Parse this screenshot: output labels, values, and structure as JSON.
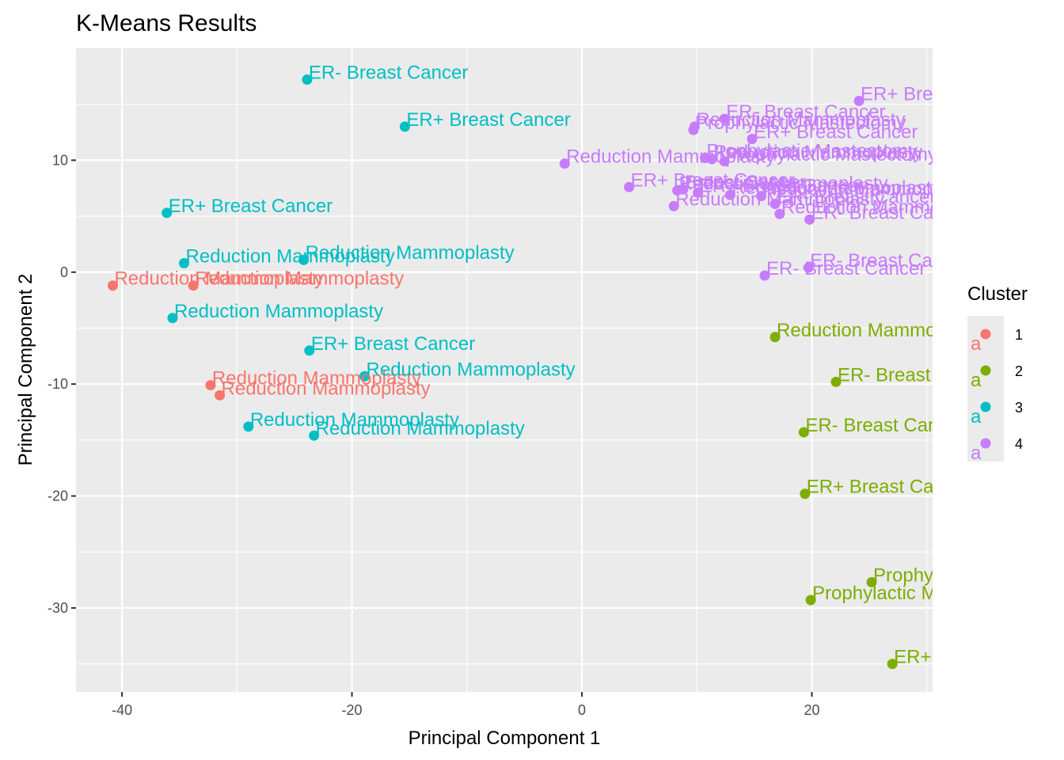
{
  "chart_data": {
    "type": "scatter",
    "title": "K-Means Results",
    "xlabel": "Principal Component 1",
    "ylabel": "Principal Component 2",
    "xlim": [
      -44,
      30.5
    ],
    "ylim": [
      -37.5,
      20
    ],
    "x_ticks": [
      -40,
      -20,
      0,
      20
    ],
    "y_ticks": [
      -30,
      -20,
      -10,
      0,
      10
    ],
    "x_tick_labels": [
      "-40",
      "-20",
      "0",
      "20"
    ],
    "y_tick_labels": [
      "-30",
      "-20",
      "-10",
      "0",
      "10"
    ],
    "grid": true,
    "background": "#ebebeb",
    "legend": {
      "title": "Cluster",
      "position": "right",
      "key_glyph_text": "a",
      "entries": [
        {
          "label": "1",
          "color": "#F8766D"
        },
        {
          "label": "2",
          "color": "#7CAE00"
        },
        {
          "label": "3",
          "color": "#00BFC4"
        },
        {
          "label": "4",
          "color": "#C77CFF"
        }
      ]
    },
    "series": [
      {
        "name": "1",
        "color": "#F8766D",
        "points": [
          {
            "x": -40.8,
            "y": -1.2,
            "label": "Reduction Mammoplasty"
          },
          {
            "x": -33.8,
            "y": -1.2,
            "label": "Reduction Mammoplasty"
          },
          {
            "x": -32.3,
            "y": -10.1,
            "label": "Reduction Mammoplasty"
          },
          {
            "x": -31.5,
            "y": -11.0,
            "label": "Reduction Mammoplasty"
          }
        ]
      },
      {
        "name": "2",
        "color": "#7CAE00",
        "points": [
          {
            "x": 16.8,
            "y": -5.8,
            "label": "Reduction Mammoplasty"
          },
          {
            "x": 22.1,
            "y": -9.8,
            "label": "ER- Breast Cancer"
          },
          {
            "x": 19.3,
            "y": -14.3,
            "label": "ER- Breast Cancer"
          },
          {
            "x": 19.4,
            "y": -19.8,
            "label": "ER+ Breast Cancer"
          },
          {
            "x": 25.2,
            "y": -27.7,
            "label": "Prophylactic Mastectomy"
          },
          {
            "x": 19.9,
            "y": -29.3,
            "label": "Prophylactic Mastectomy"
          },
          {
            "x": 27.0,
            "y": -35.0,
            "label": "ER+ Breast Cancer"
          }
        ]
      },
      {
        "name": "3",
        "color": "#00BFC4",
        "points": [
          {
            "x": -23.9,
            "y": 17.2,
            "label": "ER- Breast Cancer"
          },
          {
            "x": -15.4,
            "y": 13.0,
            "label": "ER+ Breast Cancer"
          },
          {
            "x": -36.1,
            "y": 5.3,
            "label": "ER+ Breast Cancer"
          },
          {
            "x": -34.6,
            "y": 0.8,
            "label": "Reduction Mammoplasty"
          },
          {
            "x": -24.2,
            "y": 1.1,
            "label": "Reduction Mammoplasty"
          },
          {
            "x": -35.6,
            "y": -4.1,
            "label": "Reduction Mammoplasty"
          },
          {
            "x": -23.7,
            "y": -7.0,
            "label": "ER+ Breast Cancer"
          },
          {
            "x": -18.9,
            "y": -9.3,
            "label": "Reduction Mammoplasty"
          },
          {
            "x": -29.0,
            "y": -13.8,
            "label": "Reduction Mammoplasty"
          },
          {
            "x": -23.3,
            "y": -14.6,
            "label": "Reduction Mammoplasty"
          }
        ]
      },
      {
        "name": "4",
        "color": "#C77CFF",
        "points": [
          {
            "x": 24.1,
            "y": 15.3,
            "label": "ER+ Breast Cancer"
          },
          {
            "x": 12.4,
            "y": 13.7,
            "label": "ER- Breast Cancer"
          },
          {
            "x": 9.8,
            "y": 13.0,
            "label": "Reduction Mammoplasty"
          },
          {
            "x": 9.7,
            "y": 12.7,
            "label": "Prophylactic Mastectomy"
          },
          {
            "x": 14.8,
            "y": 11.9,
            "label": "ER+ Breast Cancer"
          },
          {
            "x": -1.5,
            "y": 9.7,
            "label": "Reduction Mammoplasty"
          },
          {
            "x": 10.7,
            "y": 10.2,
            "label": "Prophylactic Mastectomy"
          },
          {
            "x": 11.3,
            "y": 10.1,
            "label": "Reduction Mammoplasty"
          },
          {
            "x": 12.4,
            "y": 9.9,
            "label": "Prophylactic Mastectomy"
          },
          {
            "x": 4.1,
            "y": 7.6,
            "label": "ER+ Breast Cancer"
          },
          {
            "x": 8.3,
            "y": 7.3,
            "label": "Reduction Mammoplasty"
          },
          {
            "x": 8.8,
            "y": 7.4,
            "label": "Breast Cancer"
          },
          {
            "x": 10.1,
            "y": 7.1,
            "label": "ER+ Breast Cancer"
          },
          {
            "x": 12.9,
            "y": 6.9,
            "label": "Reduction Mammoplasty"
          },
          {
            "x": 15.6,
            "y": 6.8,
            "label": "Reduction Mammoplasty"
          },
          {
            "x": 8.0,
            "y": 5.9,
            "label": "Reduction Mammoplasty"
          },
          {
            "x": 16.8,
            "y": 6.1,
            "label": "ER- Breast Cancer"
          },
          {
            "x": 17.2,
            "y": 5.2,
            "label": "Reduction Mammoplasty"
          },
          {
            "x": 19.8,
            "y": 4.7,
            "label": "ER- Breast Cancer"
          },
          {
            "x": 19.7,
            "y": 0.4,
            "label": "ER- Breast Cancer"
          },
          {
            "x": 15.9,
            "y": -0.3,
            "label": "ER- Breast Cancer"
          }
        ]
      }
    ]
  }
}
